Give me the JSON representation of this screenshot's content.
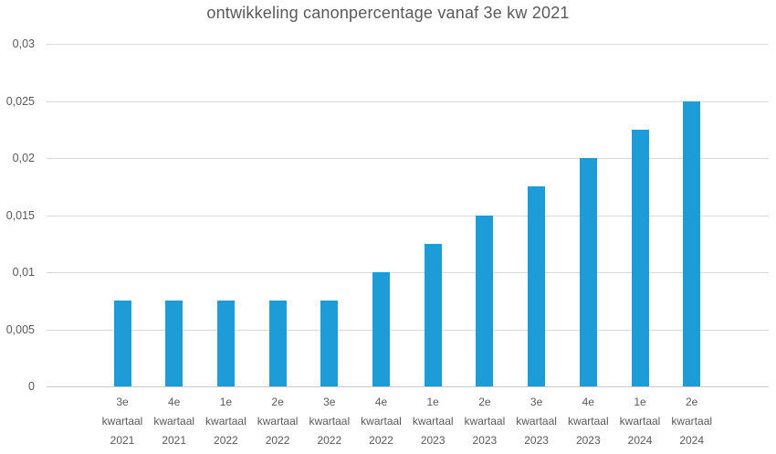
{
  "chart_data": {
    "type": "bar",
    "title": "ontwikkeling canonpercentage vanaf 3e kw 2021",
    "categories": [
      "3e kwartaal 2021",
      "4e kwartaal 2021",
      "1e kwartaal 2022",
      "2e kwartaal 2022",
      "3e kwartaal 2022",
      "4e kwartaal 2022",
      "1e kwartaal 2023",
      "2e kwartaal 2023",
      "3e kwartaal 2023",
      "4e kwartaal 2023",
      "1e kwartaal 2024",
      "2e kwartaal 2024"
    ],
    "values": [
      0.0075,
      0.0075,
      0.0075,
      0.0075,
      0.0075,
      0.01,
      0.0125,
      0.015,
      0.0175,
      0.02,
      0.0225,
      0.025
    ],
    "xlabel": "",
    "ylabel": "",
    "ylim": [
      0,
      0.03
    ],
    "y_tick_step": 0.005,
    "y_tick_labels": [
      "0",
      "0,005",
      "0,01",
      "0,015",
      "0,02",
      "0,025",
      "0,03"
    ],
    "grid": true,
    "legend": false,
    "bar_color": "#1E9CD7",
    "text_color": "#595959",
    "gridline_color": "#D9D9D9",
    "axisline_color": "#C9C9C9",
    "background_color": "#FFFFFF"
  }
}
